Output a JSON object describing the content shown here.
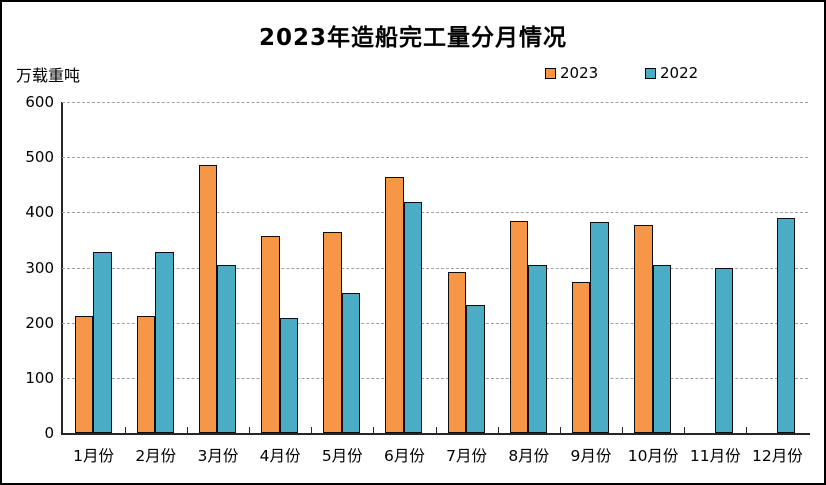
{
  "window": {
    "background": "#FFFFFF",
    "border_color": "#000000"
  },
  "chart": {
    "title": "2023年造船完工量分月情况",
    "unit_label": "万载重吨"
  },
  "chart_data": {
    "type": "bar",
    "title": "2023年造船完工量分月情况",
    "ylabel": "万载重吨",
    "xlabel": "",
    "categories": [
      "1月份",
      "2月份",
      "3月份",
      "4月份",
      "5月份",
      "6月份",
      "7月份",
      "8月份",
      "9月份",
      "10月份",
      "11月份",
      "12月份"
    ],
    "series": [
      {
        "name": "2023",
        "color": "#F79646",
        "values": [
          212,
          213,
          486,
          358,
          364,
          464,
          291,
          384,
          273,
          377,
          null,
          null
        ]
      },
      {
        "name": "2022",
        "color": "#4BACC6",
        "values": [
          328,
          329,
          304,
          208,
          253,
          419,
          232,
          304,
          382,
          304,
          300,
          389
        ]
      }
    ],
    "ylim": [
      0,
      600
    ],
    "yticks": [
      0,
      100,
      200,
      300,
      400,
      500,
      600
    ],
    "grid": true,
    "grid_style": "dashed",
    "gridline_color": "#A0A0A0",
    "axis_color": "#262626",
    "bar_outline_color": "#0d0d0d",
    "legend_position": "top-right",
    "legend": [
      "2023",
      "2022"
    ]
  }
}
